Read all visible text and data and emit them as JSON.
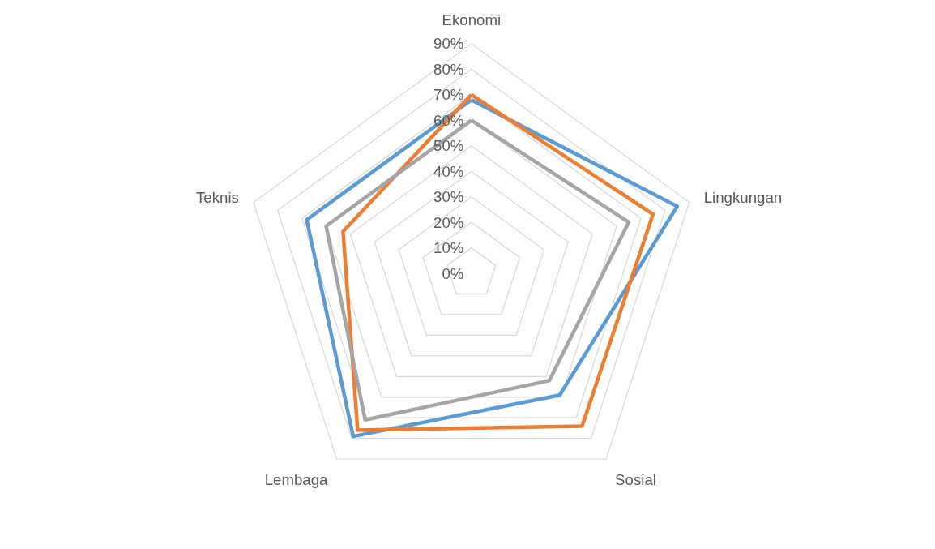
{
  "chart_data": {
    "type": "radar",
    "categories": [
      "Ekonomi",
      "Lingkungan",
      "Sosial",
      "Lembaga",
      "Teknis"
    ],
    "series": [
      {
        "color": "#5b9bd5",
        "values": [
          68,
          85,
          59,
          79,
          68
        ]
      },
      {
        "color": "#ed7d31",
        "values": [
          70,
          75,
          74,
          76,
          53
        ]
      },
      {
        "color": "#a5a5a5",
        "values": [
          60,
          65,
          52,
          71,
          60
        ]
      }
    ],
    "ylim": [
      0,
      90
    ],
    "yticks": [
      {
        "value": 0,
        "label": "0%"
      },
      {
        "value": 10,
        "label": "10%"
      },
      {
        "value": 20,
        "label": "20%"
      },
      {
        "value": 30,
        "label": "30%"
      },
      {
        "value": 40,
        "label": "40%"
      },
      {
        "value": 50,
        "label": "50%"
      },
      {
        "value": 60,
        "label": "60%"
      },
      {
        "value": 70,
        "label": "70%"
      },
      {
        "value": 80,
        "label": "80%"
      },
      {
        "value": 90,
        "label": "90%"
      }
    ],
    "grid": true,
    "line_style": "solid",
    "marker": "none"
  }
}
